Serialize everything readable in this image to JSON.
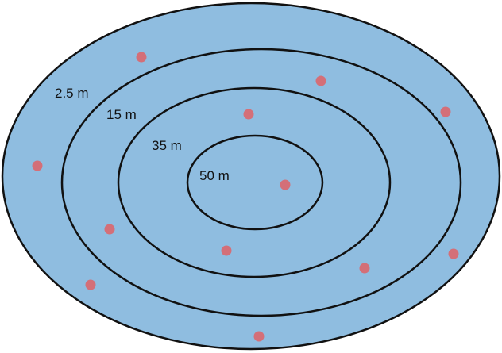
{
  "colors": {
    "background": "#ffffff",
    "field": "#8fbde0",
    "ring_stroke": "#111111",
    "point": "#d46f78"
  },
  "rings": [
    {
      "label": "2.5 m"
    },
    {
      "label": "15 m"
    },
    {
      "label": "35 m"
    },
    {
      "label": "50 m"
    }
  ],
  "point_count": 12
}
